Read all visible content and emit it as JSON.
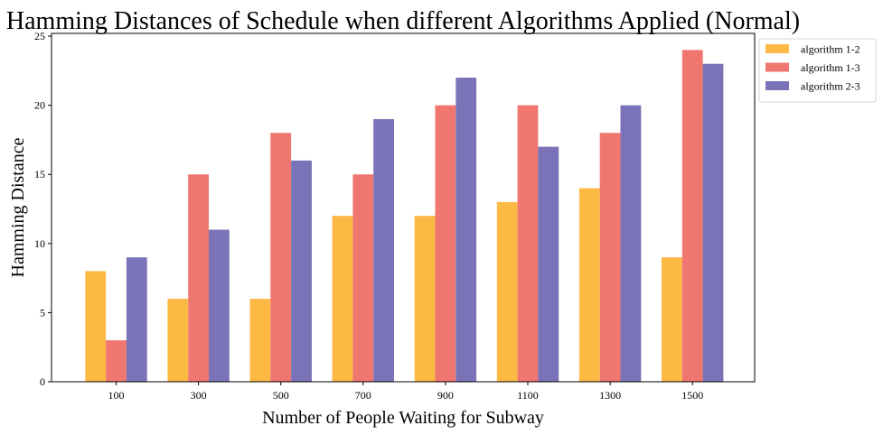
{
  "chart_data": {
    "type": "bar",
    "title": "Hamming Distances of Schedule when different Algorithms Applied (Normal)",
    "xlabel": "Number of People Waiting for Subway",
    "ylabel": "Hamming Distance",
    "categories": [
      "100",
      "300",
      "500",
      "700",
      "900",
      "1100",
      "1300",
      "1500"
    ],
    "series": [
      {
        "name": "algorithm 1-2",
        "color": "#fcb944",
        "values": [
          8,
          6,
          6,
          12,
          12,
          13,
          14,
          9
        ]
      },
      {
        "name": "algorithm 1-3",
        "color": "#f07670",
        "values": [
          3,
          15,
          18,
          15,
          20,
          20,
          18,
          24
        ]
      },
      {
        "name": "algorithm 2-3",
        "color": "#7b73b7",
        "values": [
          9,
          11,
          16,
          19,
          22,
          17,
          20,
          23
        ]
      }
    ],
    "yticks": [
      0,
      5,
      10,
      15,
      20,
      25
    ],
    "ylim": [
      0,
      25.2
    ],
    "grid": false,
    "legend_position": "outside top-right"
  }
}
